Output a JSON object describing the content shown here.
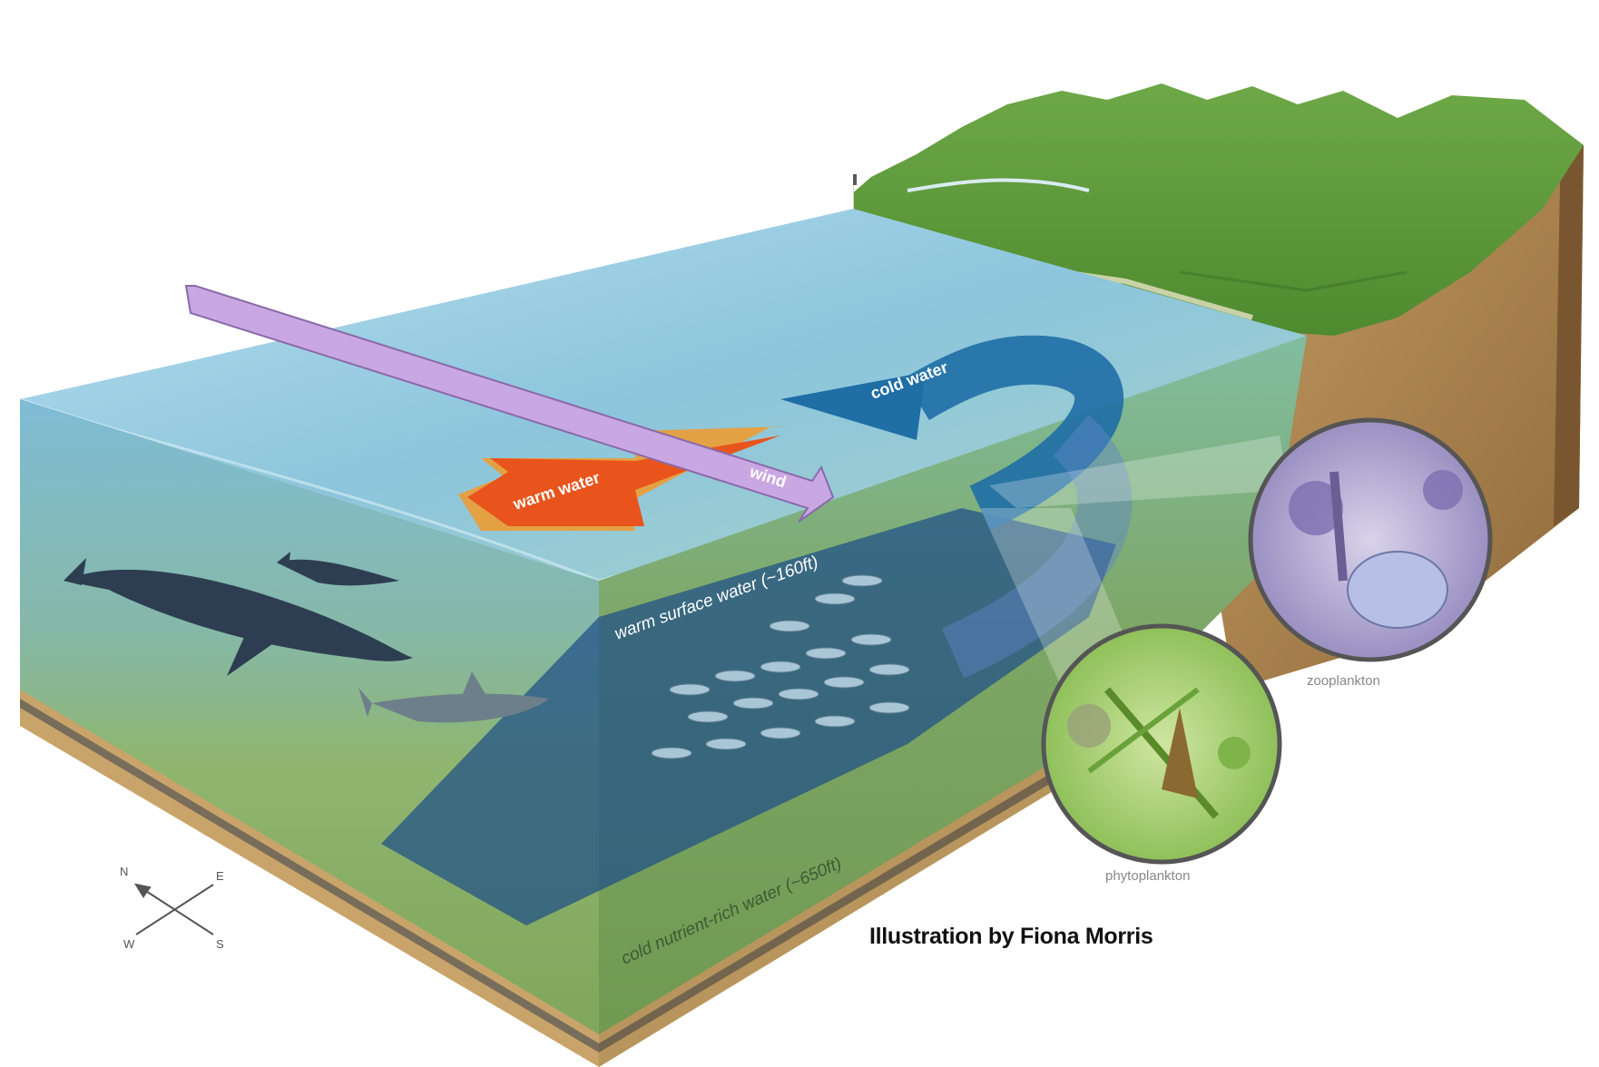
{
  "labels": {
    "warm_water": "warm water",
    "cold_water": "cold water",
    "wind": "wind",
    "warm_surface_water": "warm surface water (~160ft)",
    "cold_nutrient_water": "cold nutrient-rich water (~650ft)",
    "zooplankton": "zooplankton",
    "phytoplankton": "phytoplankton",
    "credit": "Illustration by Fiona Morris"
  },
  "compass": {
    "n": "N",
    "e": "E",
    "s": "S",
    "w": "W"
  },
  "colors": {
    "warm_arrow": "#e8541c",
    "cold_arrow": "#1f6ea6",
    "wind_arrow": "#c9a7e2",
    "ocean_surface": "#8ec6dc",
    "deep_water": "#1f4f88",
    "land_green": "#5f9a3a",
    "soil": "#b08a55"
  }
}
